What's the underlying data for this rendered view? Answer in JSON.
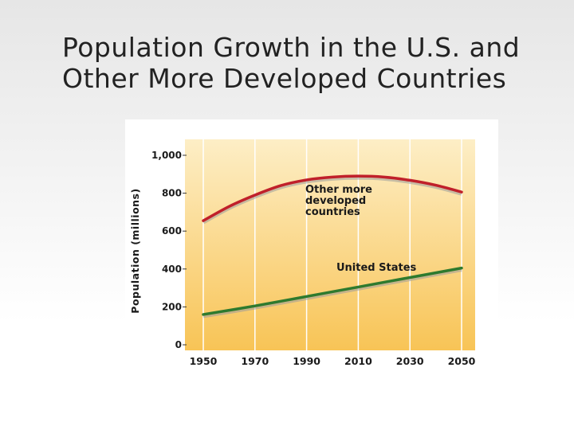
{
  "slide": {
    "title_line1": "Population Growth in the U.S. and",
    "title_line2": "Other More Developed Countries"
  },
  "colors": {
    "plot_gradient_top": "#fdeec6",
    "plot_gradient_bottom": "#f8c456",
    "grid": "#ffffff",
    "other_developed_line": "#c0202a",
    "us_line": "#2e7a2e",
    "text": "#1a1a1a"
  },
  "chart_data": {
    "type": "line",
    "title": "",
    "xlabel": "",
    "ylabel": "Population (millions)",
    "xlim": [
      1950,
      2050
    ],
    "ylim": [
      0,
      1000
    ],
    "x_ticks": [
      1950,
      1970,
      1990,
      2010,
      2030,
      2050
    ],
    "y_ticks": [
      {
        "value": 0,
        "label": "0"
      },
      {
        "value": 200,
        "label": "200"
      },
      {
        "value": 400,
        "label": "400"
      },
      {
        "value": 600,
        "label": "600"
      },
      {
        "value": 800,
        "label": "800"
      },
      {
        "value": 1000,
        "label": "1,000"
      }
    ],
    "grid": true,
    "series": [
      {
        "name": "Other more developed countries",
        "label_lines": [
          "Other more",
          "developed",
          "countries"
        ],
        "color": "#c0202a",
        "x": [
          1950,
          1960,
          1970,
          1980,
          1990,
          2000,
          2010,
          2020,
          2030,
          2040,
          2050
        ],
        "y": [
          655,
          730,
          790,
          840,
          870,
          885,
          890,
          885,
          868,
          842,
          806
        ]
      },
      {
        "name": "United States",
        "label_lines": [
          "United States"
        ],
        "color": "#2e7a2e",
        "x": [
          1950,
          1970,
          1990,
          2010,
          2030,
          2050
        ],
        "y": [
          160,
          205,
          255,
          305,
          355,
          405
        ]
      }
    ]
  }
}
